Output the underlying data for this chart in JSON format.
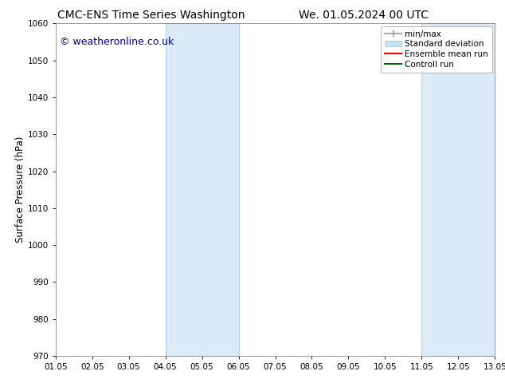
{
  "title_left": "CMC-ENS Time Series Washington",
  "title_right": "We. 01.05.2024 00 UTC",
  "ylabel": "Surface Pressure (hPa)",
  "xlim": [
    0,
    12
  ],
  "ylim": [
    970,
    1060
  ],
  "yticks": [
    970,
    980,
    990,
    1000,
    1010,
    1020,
    1030,
    1040,
    1050,
    1060
  ],
  "xtick_labels": [
    "01.05",
    "02.05",
    "03.05",
    "04.05",
    "05.05",
    "06.05",
    "07.05",
    "08.05",
    "09.05",
    "10.05",
    "11.05",
    "12.05",
    "13.05"
  ],
  "shaded_bands": [
    {
      "x_start": 3,
      "x_end": 5,
      "color": "#daeaf7"
    },
    {
      "x_start": 10,
      "x_end": 12,
      "color": "#daeaf7"
    }
  ],
  "band_border_color": "#b0cfe8",
  "watermark_text": "© weatheronline.co.uk",
  "watermark_color": "#0000bb",
  "background_color": "#ffffff",
  "plot_bg_color": "#ffffff",
  "legend_items": [
    {
      "label": "min/max",
      "color": "#bbbbbb",
      "type": "minmax"
    },
    {
      "label": "Standard deviation",
      "color": "#c8dff0",
      "type": "band"
    },
    {
      "label": "Ensemble mean run",
      "color": "#ff0000",
      "type": "line"
    },
    {
      "label": "Controll run",
      "color": "#006400",
      "type": "line"
    }
  ],
  "title_fontsize": 10,
  "tick_fontsize": 7.5,
  "ylabel_fontsize": 8.5,
  "legend_fontsize": 7.5,
  "watermark_fontsize": 9
}
